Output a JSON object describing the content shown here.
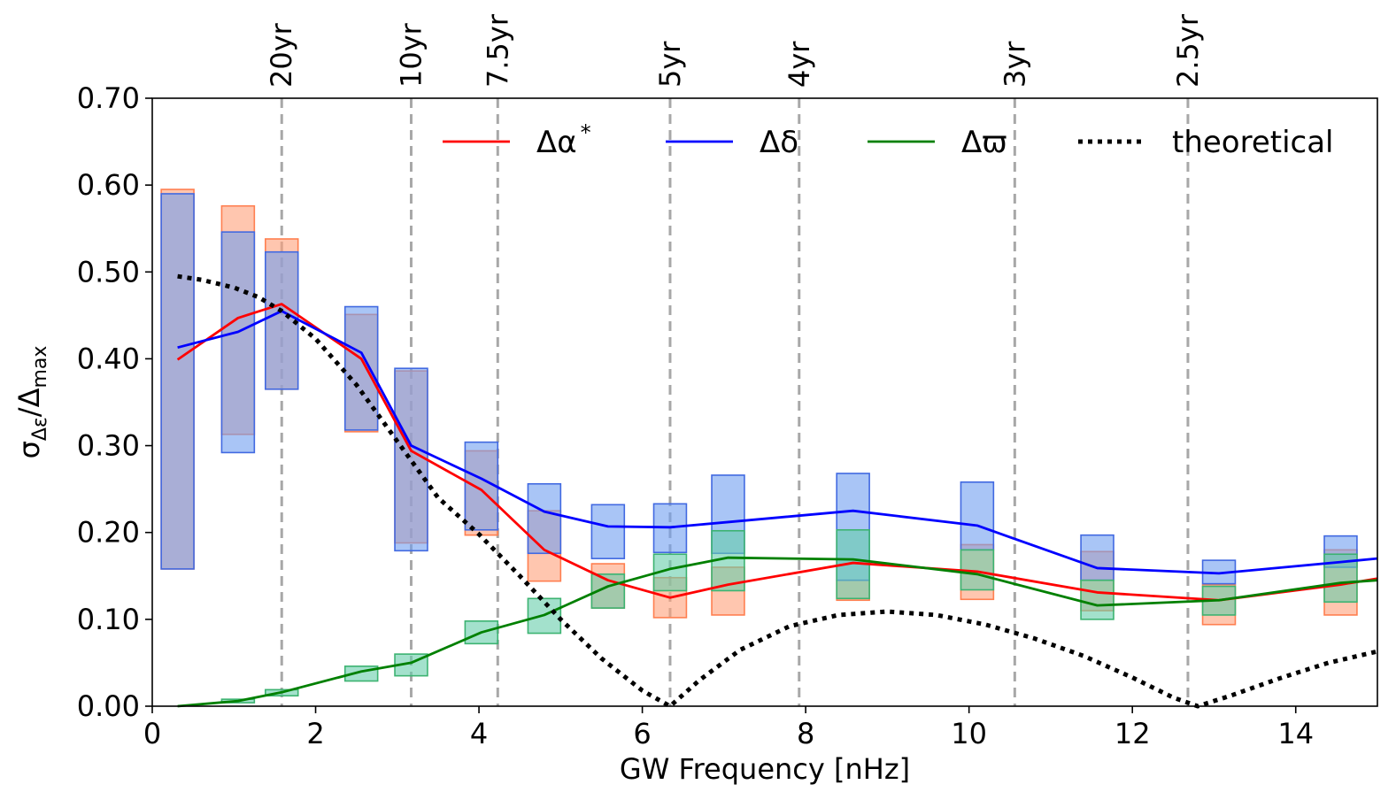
{
  "chart_data": {
    "type": "line",
    "xlabel": "GW Frequency [nHz]",
    "ylabel_main": "σ",
    "ylabel_sub": "Δε",
    "ylabel_den": "Δ",
    "ylabel_den_sub": "max",
    "xlim": [
      0,
      15
    ],
    "ylim": [
      0,
      0.7
    ],
    "x_ticks": [
      0,
      2,
      4,
      6,
      8,
      10,
      12,
      14
    ],
    "x_tick_labels": [
      "0",
      "2",
      "4",
      "6",
      "8",
      "10",
      "12",
      "14"
    ],
    "y_ticks": [
      0,
      0.1,
      0.2,
      0.3,
      0.4,
      0.5,
      0.6,
      0.7
    ],
    "y_tick_labels": [
      "0.00",
      "0.10",
      "0.20",
      "0.30",
      "0.40",
      "0.50",
      "0.60",
      "0.70"
    ],
    "period_lines": [
      {
        "label": "20yr",
        "x": 1.585
      },
      {
        "label": "10yr",
        "x": 3.17
      },
      {
        "label": "7.5yr",
        "x": 4.23
      },
      {
        "label": "5yr",
        "x": 6.34
      },
      {
        "label": "4yr",
        "x": 7.92
      },
      {
        "label": "3yr",
        "x": 10.56
      },
      {
        "label": "2.5yr",
        "x": 12.68
      }
    ],
    "box_halfwidth": 0.2,
    "series": [
      {
        "name": "Δα*",
        "label_main": "Δα",
        "label_sup": "*",
        "color": "#ff0000",
        "box_fill": "#ffa07a",
        "box_stroke": "#ff7f50",
        "x": [
          0.31,
          1.05,
          1.585,
          2.56,
          3.17,
          4.03,
          4.8,
          5.58,
          6.34,
          7.05,
          8.58,
          10.1,
          11.57,
          13.06,
          14.55,
          15.0
        ],
        "values": [
          0.399,
          0.447,
          0.463,
          0.4,
          0.294,
          0.249,
          0.18,
          0.145,
          0.125,
          0.14,
          0.165,
          0.155,
          0.131,
          0.122,
          0.14,
          0.147
        ],
        "box_low": [
          0.158,
          0.313,
          0.365,
          0.316,
          0.188,
          0.197,
          0.144,
          0.113,
          0.102,
          0.105,
          0.122,
          0.123,
          0.11,
          0.094,
          0.105,
          null
        ],
        "box_high": [
          0.595,
          0.576,
          0.538,
          0.451,
          0.386,
          0.294,
          0.225,
          0.164,
          0.148,
          0.16,
          0.145,
          0.186,
          0.178,
          0.14,
          0.18,
          null
        ]
      },
      {
        "name": "Δδ",
        "label_main": "Δδ",
        "label_sup": "",
        "color": "#0000ff",
        "box_fill": "#6f9ef0",
        "box_stroke": "#4169e1",
        "x": [
          0.31,
          1.05,
          1.585,
          2.56,
          3.17,
          4.03,
          4.8,
          5.58,
          6.34,
          7.05,
          8.58,
          10.1,
          11.57,
          13.06,
          14.55,
          15.0
        ],
        "values": [
          0.413,
          0.431,
          0.455,
          0.407,
          0.3,
          0.262,
          0.224,
          0.207,
          0.206,
          0.212,
          0.225,
          0.208,
          0.159,
          0.153,
          0.166,
          0.17
        ],
        "box_low": [
          0.158,
          0.292,
          0.365,
          0.318,
          0.179,
          0.203,
          0.176,
          0.17,
          0.177,
          0.176,
          0.145,
          0.18,
          0.145,
          0.141,
          0.16,
          null
        ],
        "box_high": [
          0.59,
          0.546,
          0.523,
          0.46,
          0.389,
          0.304,
          0.256,
          0.232,
          0.233,
          0.266,
          0.268,
          0.258,
          0.197,
          0.168,
          0.196,
          null
        ]
      },
      {
        "name": "Δϖ",
        "label_main": "Δϖ",
        "label_sup": "",
        "color": "#008000",
        "box_fill": "#66cdaa",
        "box_stroke": "#3cb371",
        "x": [
          0.31,
          1.05,
          1.585,
          2.56,
          3.17,
          4.03,
          4.8,
          5.58,
          6.34,
          7.05,
          8.58,
          10.1,
          11.57,
          13.06,
          14.55,
          15.0
        ],
        "values": [
          0.0,
          0.006,
          0.016,
          0.04,
          0.05,
          0.085,
          0.105,
          0.138,
          0.158,
          0.171,
          0.169,
          0.152,
          0.116,
          0.122,
          0.142,
          0.145
        ],
        "box_low": [
          null,
          0.004,
          0.012,
          0.029,
          0.035,
          0.072,
          0.084,
          0.113,
          0.133,
          0.133,
          0.124,
          0.134,
          0.1,
          0.105,
          0.12,
          null
        ],
        "box_high": [
          null,
          0.008,
          0.019,
          0.046,
          0.06,
          0.098,
          0.124,
          0.152,
          0.175,
          0.202,
          0.203,
          0.18,
          0.145,
          0.138,
          0.175,
          null
        ]
      }
    ],
    "theoretical": {
      "name": "theoretical",
      "color": "#000000",
      "x": [
        0.31,
        0.6,
        1.0,
        1.3,
        1.585,
        2.0,
        2.5,
        3.0,
        3.5,
        4.0,
        4.5,
        5.0,
        5.5,
        6.0,
        6.34,
        6.7,
        7.2,
        7.8,
        8.4,
        9.0,
        9.6,
        10.2,
        10.8,
        11.4,
        12.0,
        12.5,
        12.8,
        13.2,
        13.8,
        14.4,
        15.0
      ],
      "values": [
        0.495,
        0.491,
        0.482,
        0.471,
        0.455,
        0.423,
        0.37,
        0.305,
        0.24,
        0.198,
        0.15,
        0.1,
        0.055,
        0.018,
        0.0,
        0.03,
        0.065,
        0.092,
        0.105,
        0.109,
        0.105,
        0.094,
        0.078,
        0.058,
        0.033,
        0.01,
        0.0,
        0.012,
        0.032,
        0.05,
        0.063
      ]
    }
  }
}
